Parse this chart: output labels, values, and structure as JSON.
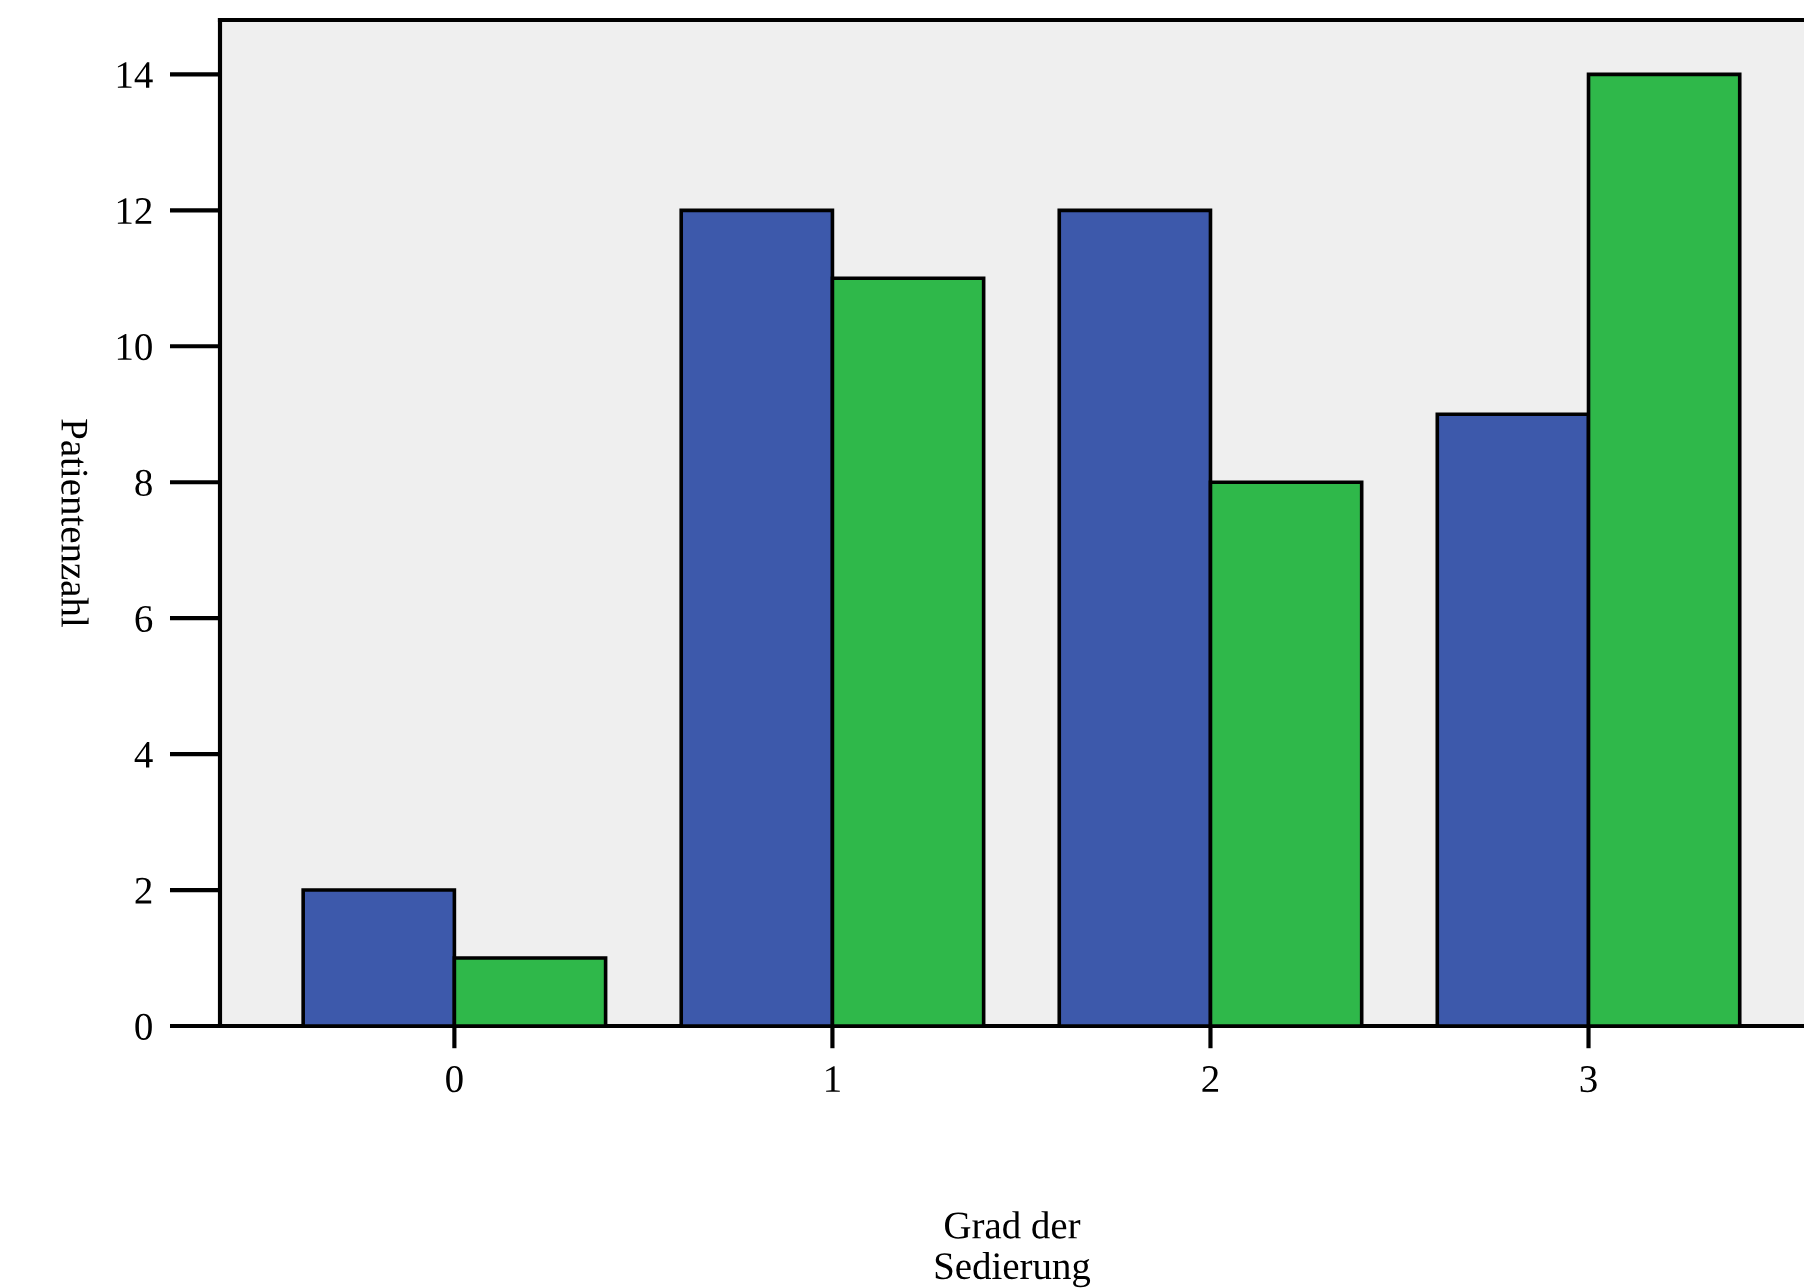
{
  "chart_data": {
    "type": "bar",
    "xlabel": "Grad der\nSedierung",
    "ylabel": "Patientenzahl",
    "categories": [
      "0",
      "1",
      "2",
      "3"
    ],
    "series": [
      {
        "color": "#3d59ab",
        "values": [
          2,
          12,
          12,
          9
        ]
      },
      {
        "color": "#2fb84a",
        "values": [
          1,
          11,
          8,
          14
        ]
      }
    ],
    "ylim": [
      0,
      14.8
    ],
    "yticks": [
      0,
      2,
      4,
      6,
      8,
      10,
      12,
      14
    ],
    "grid": false
  }
}
